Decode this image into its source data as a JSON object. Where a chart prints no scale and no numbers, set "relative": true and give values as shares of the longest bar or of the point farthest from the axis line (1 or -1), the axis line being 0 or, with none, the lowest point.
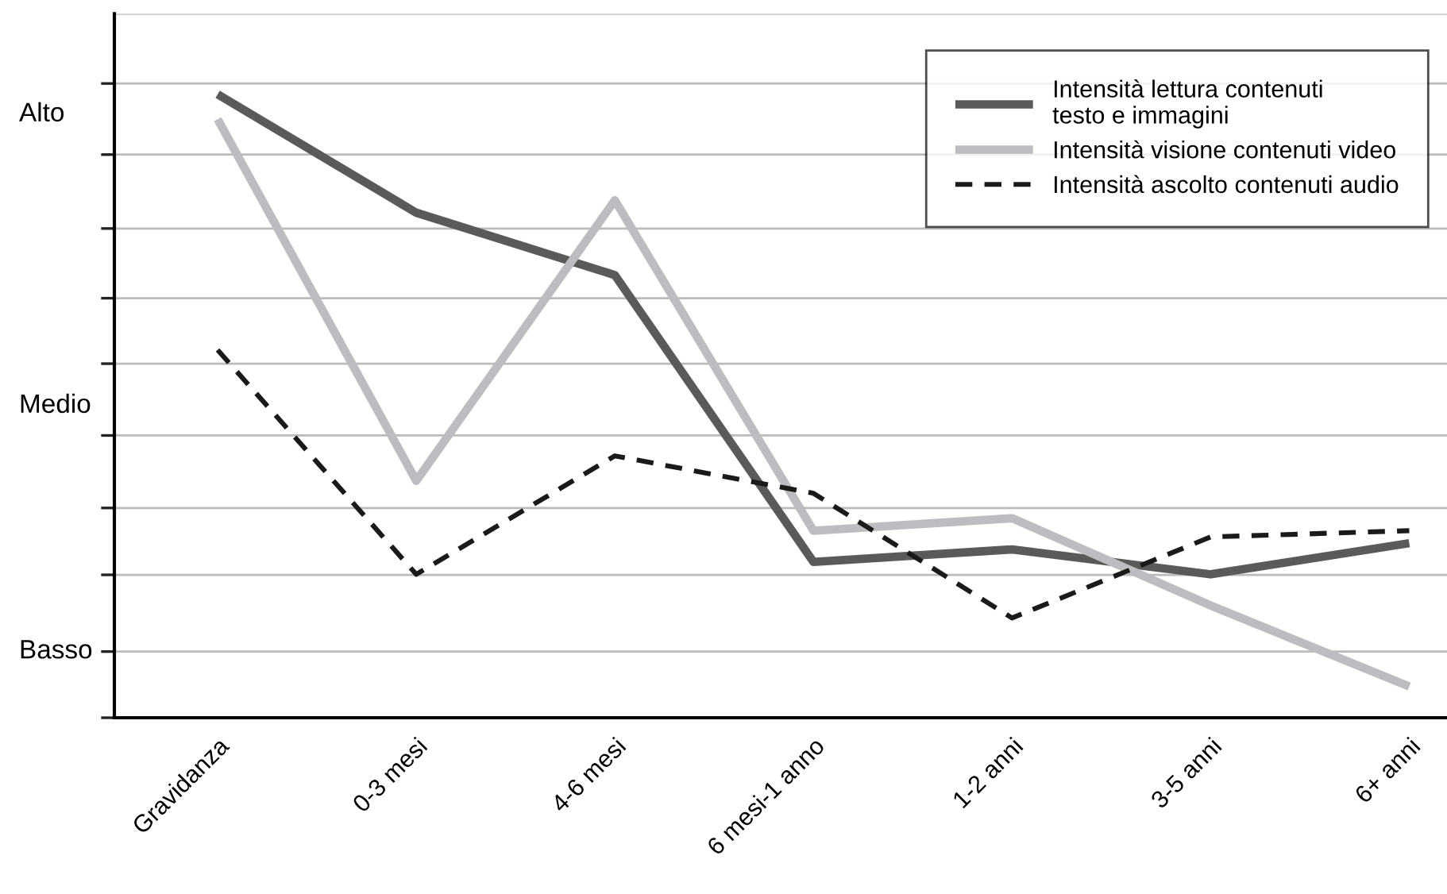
{
  "chart_data": {
    "type": "line",
    "relative": true,
    "categories": [
      "Gravidanza",
      "0-3 mesi",
      "4-6 mesi",
      "6 mesi-1 anno",
      "1-2 anni",
      "3-5 anni",
      "6+ anni"
    ],
    "annotations": [
      "Alto",
      "Medio",
      "Basso"
    ],
    "grid": "y",
    "legend": "top right",
    "series": [
      {
        "name": "Intensità lettura contenuti\ntesto e immagini",
        "color": "#5a5a5a",
        "line_style": "solid",
        "values": [
          1,
          0.81,
          0.71,
          0.25,
          0.27,
          0.23,
          0.28
        ]
      },
      {
        "name": "Intensità visione contenuti video",
        "color": "#bcbdc0",
        "line_style": "solid",
        "values": [
          0.96,
          0.38,
          0.83,
          0.3,
          0.32,
          0.18,
          0.05
        ]
      },
      {
        "name": "Intensità ascolto contenuti audio",
        "color": "#1a1a1a",
        "line_style": "dashed",
        "values": [
          0.59,
          0.23,
          0.42,
          0.36,
          0.16,
          0.29,
          0.3
        ]
      }
    ]
  }
}
